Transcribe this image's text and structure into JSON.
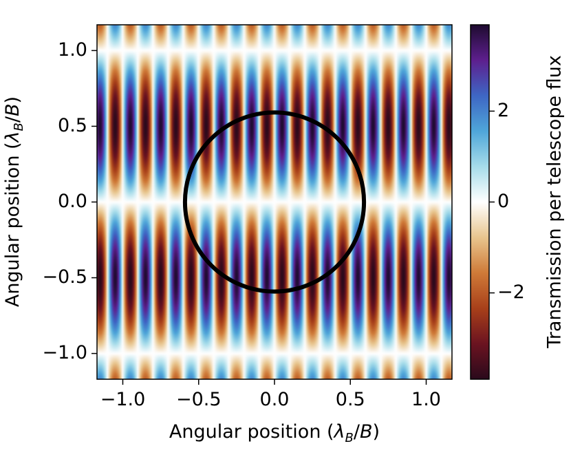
{
  "chart_data": {
    "type": "heatmap",
    "xlabel": "Angular position (λ_B/B)",
    "ylabel": "Angular position (λ_B/B)",
    "xlabel_parts": {
      "prefix": "Angular position (",
      "lambda": "λ",
      "sub": "B",
      "suffix": "/",
      "B": "B",
      "close": ")"
    },
    "ylabel_parts": {
      "prefix": "Angular position (",
      "lambda": "λ",
      "sub": "B",
      "suffix": "/",
      "B": "B",
      "close": ")"
    },
    "xlim": [
      -1.17,
      1.17
    ],
    "ylim": [
      -1.17,
      1.17
    ],
    "xticks": [
      -1.0,
      -0.5,
      0.0,
      0.5,
      1.0
    ],
    "xtick_labels": [
      "−1.0",
      "−0.5",
      "0.0",
      "0.5",
      "1.0"
    ],
    "yticks": [
      -1.0,
      -0.5,
      0.0,
      0.5,
      1.0
    ],
    "ytick_labels": [
      "−1.0",
      "−0.5",
      "0.0",
      "0.5",
      "1.0"
    ],
    "field": {
      "description_formula": "A * sin(2*pi*x/period_x) * sin(2*pi*y/period_y)",
      "amplitude": 3.9,
      "period_x": 0.2,
      "period_y": 2.0
    },
    "colorbar": {
      "label": "Transmission per telescope flux",
      "range": [
        -3.9,
        3.9
      ],
      "ticks": [
        -2,
        0,
        2
      ],
      "tick_labels": [
        "−2",
        "0",
        "2"
      ],
      "colormap": [
        "#2a0a1c",
        "#6b1320",
        "#a8401a",
        "#cf7a38",
        "#e8c58e",
        "#ffffff",
        "#a6dcea",
        "#4fa6d9",
        "#3e66c4",
        "#5d1f8e",
        "#1e0b2f"
      ]
    },
    "overlay_circle": {
      "center": [
        0.0,
        0.0
      ],
      "radius": 0.59,
      "color": "#000000"
    }
  }
}
